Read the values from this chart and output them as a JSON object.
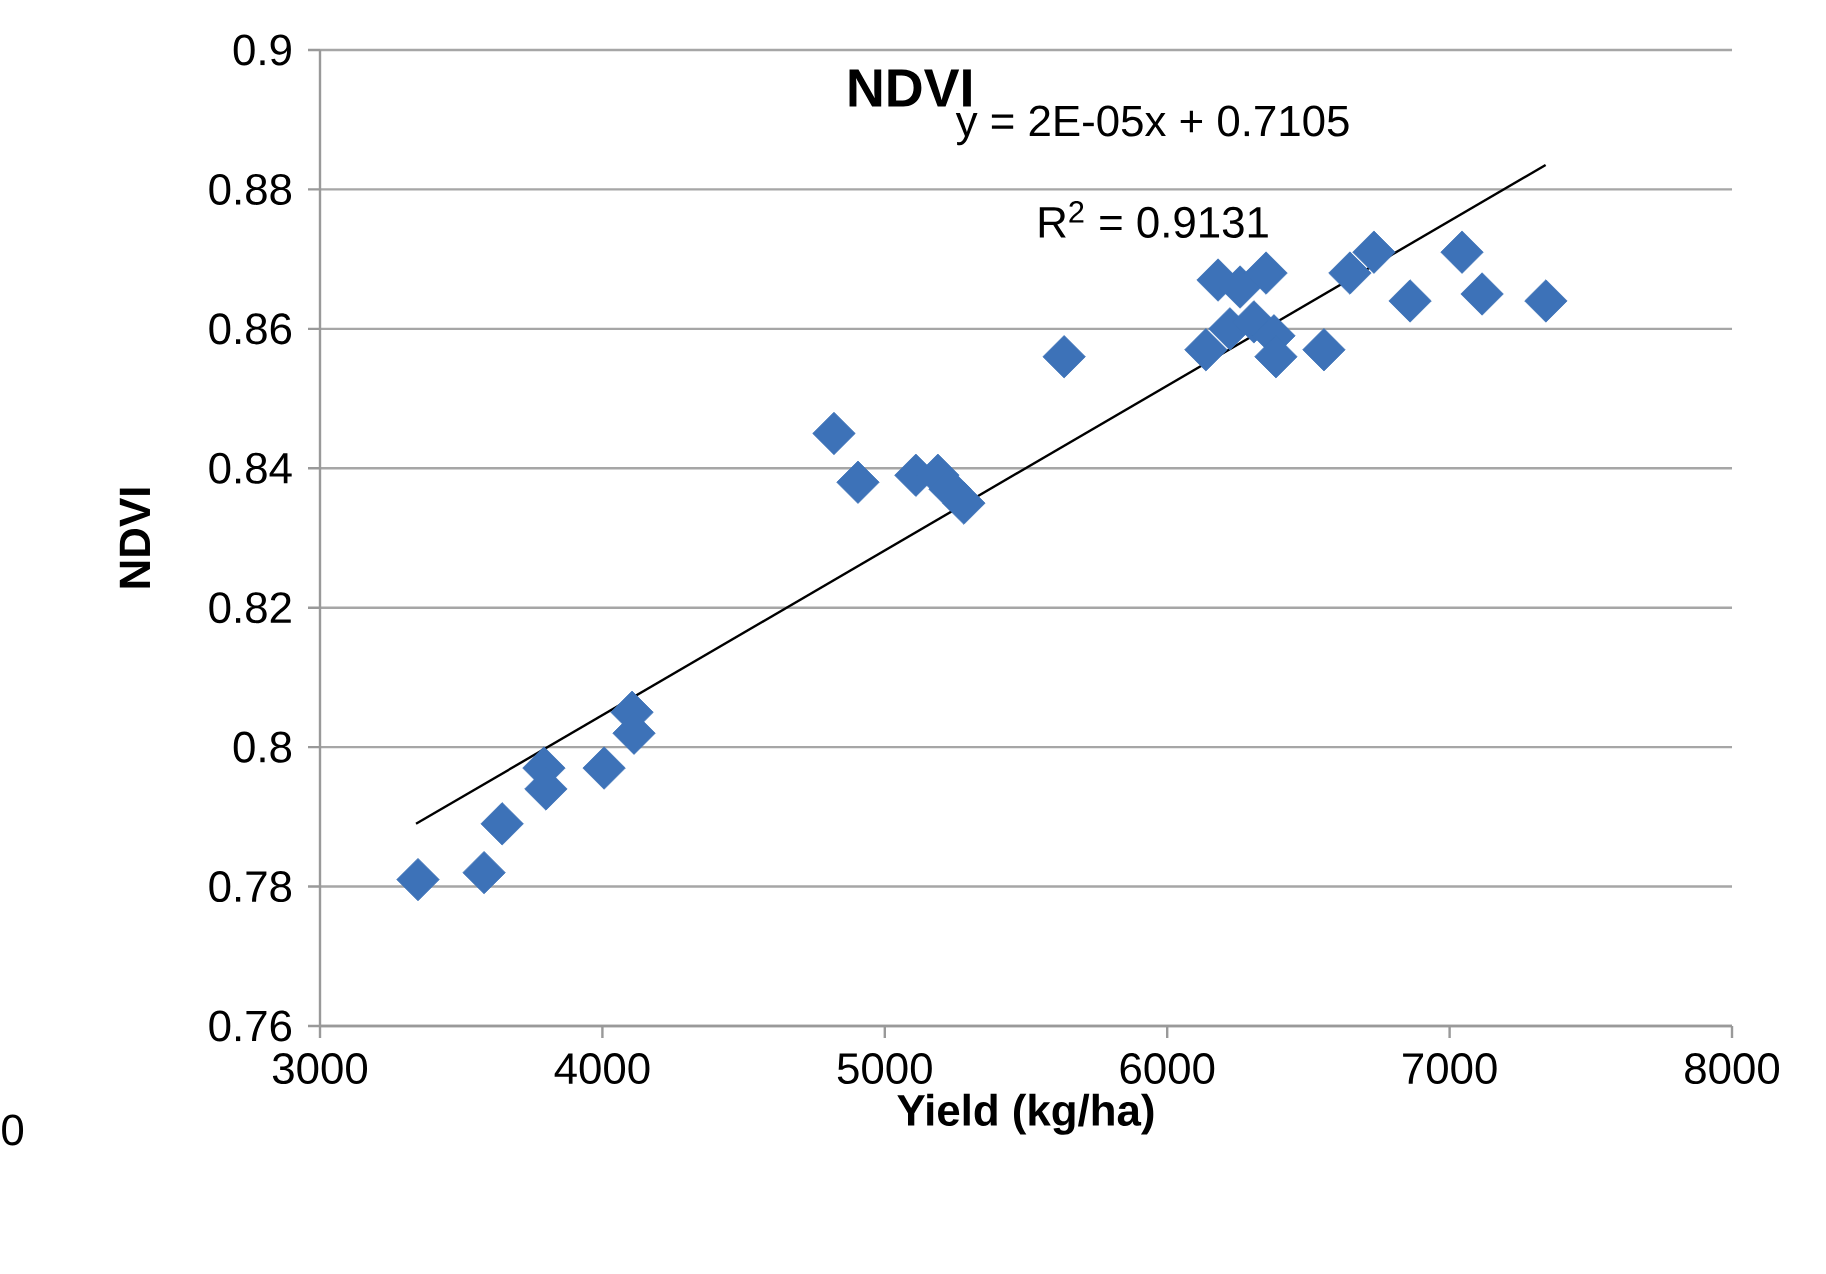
{
  "chart_data": {
    "type": "scatter",
    "title": "NDVI",
    "xlabel": "Yield (kg/ha)",
    "ylabel": "NDVI",
    "annotations": [
      "y = 2E-05x + 0.7105",
      "R$^{2}$ = 0.9131",
      "0"
    ],
    "xlim": [
      3000,
      8000
    ],
    "xticks": [
      3000,
      4000,
      5000,
      6000,
      7000,
      8000
    ],
    "ylim": [
      0.76,
      0.9
    ],
    "yticks": [
      0.76,
      0.78,
      0.8,
      0.82,
      0.84,
      0.86,
      0.88,
      0.9
    ],
    "grid": "y",
    "series": [
      {
        "marker": "diamond",
        "color": "#3d72b8",
        "x": [
          3347,
          3581,
          3645,
          3793,
          3800,
          4006,
          4105,
          4112,
          4820,
          4905,
          5110,
          5188,
          5231,
          5280,
          5635,
          6180,
          6258,
          6350,
          6137,
          6222,
          6307,
          6378,
          6385,
          6555,
          6647,
          6732,
          6860,
          7044,
          7115,
          7341
        ],
        "values": [
          0.781,
          0.782,
          0.789,
          0.797,
          0.794,
          0.797,
          0.805,
          0.802,
          0.845,
          0.838,
          0.839,
          0.839,
          0.837,
          0.835,
          0.856,
          0.867,
          0.866,
          0.868,
          0.857,
          0.86,
          0.861,
          0.859,
          0.856,
          0.857,
          0.868,
          0.871,
          0.864,
          0.871,
          0.865,
          0.864
        ]
      },
      {
        "type": "line",
        "marker": "none",
        "color": "#000000",
        "x": [
          3340,
          7340
        ],
        "values": [
          0.789,
          0.8835
        ]
      }
    ]
  }
}
